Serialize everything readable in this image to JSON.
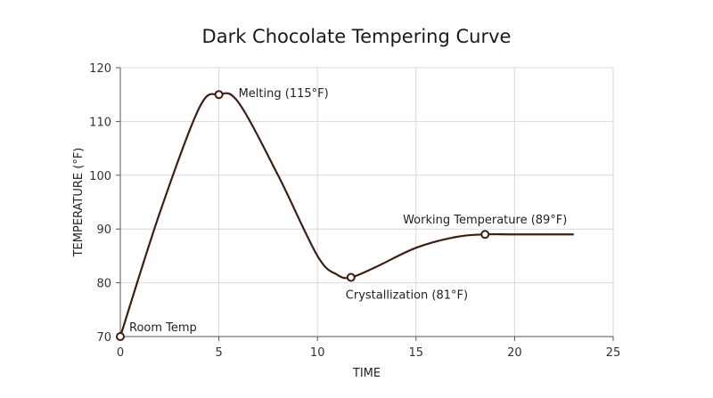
{
  "chart_data": {
    "type": "line",
    "title": "Dark Chocolate Tempering Curve",
    "xlabel": "TIME",
    "ylabel": "TEMPERATURE (°F)",
    "xlim": [
      0,
      25
    ],
    "ylim": [
      70,
      120
    ],
    "x_ticks": [
      0,
      5,
      10,
      15,
      20,
      25
    ],
    "y_ticks": [
      70,
      80,
      90,
      100,
      110,
      120
    ],
    "grid": true,
    "colors": {
      "line": "#3d1f14",
      "grid": "#d9d9d9",
      "axis": "#555555"
    },
    "series": [
      {
        "x": [
          0,
          2,
          4,
          5,
          6,
          8,
          10,
          11,
          11.7,
          13,
          15,
          17,
          18.5,
          20,
          23
        ],
        "y": [
          70,
          93,
          112.5,
          115,
          113.5,
          100,
          85,
          81.5,
          81,
          83,
          86.5,
          88.5,
          89,
          89,
          89
        ]
      }
    ],
    "annotations": [
      {
        "x": 0,
        "y": 70,
        "label": "Room Temp",
        "position": "above-right"
      },
      {
        "x": 5,
        "y": 115,
        "label": "Melting (115°F)",
        "position": "right"
      },
      {
        "x": 11.7,
        "y": 81,
        "label": "Crystallization (81°F)",
        "position": "below"
      },
      {
        "x": 18.5,
        "y": 89,
        "label": "Working Temperature (89°F)",
        "position": "above"
      }
    ]
  }
}
